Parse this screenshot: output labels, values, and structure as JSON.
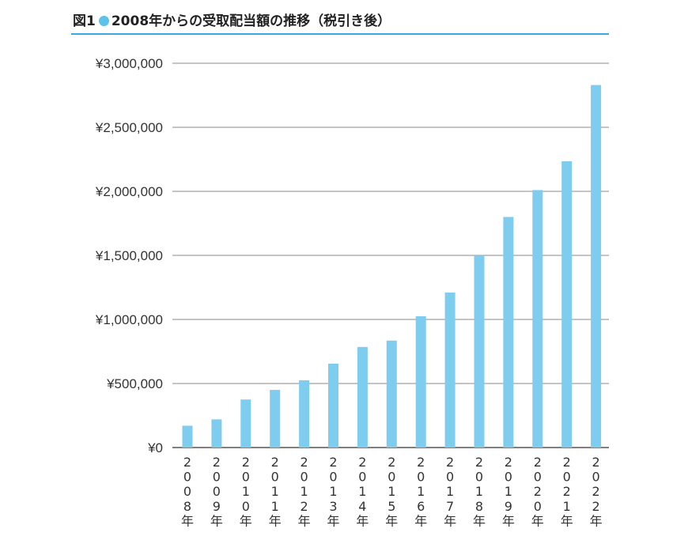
{
  "figure": {
    "label": "図1",
    "title": "2008年からの受取配当額の推移（税引き後）",
    "accent_color": "#5bc3ea",
    "rule_color": "#3aa9df"
  },
  "chart_data": {
    "type": "bar",
    "title": "2008年からの受取配当額の推移（税引き後）",
    "xlabel": "",
    "ylabel": "",
    "categories": [
      "2008年",
      "2009年",
      "2010年",
      "2011年",
      "2012年",
      "2013年",
      "2014年",
      "2015年",
      "2016年",
      "2017年",
      "2018年",
      "2019年",
      "2020年",
      "2021年",
      "2022年"
    ],
    "values": [
      170000,
      220000,
      375000,
      450000,
      525000,
      655000,
      785000,
      835000,
      1025000,
      1210000,
      1500000,
      1800000,
      2010000,
      2235000,
      2830000
    ],
    "ylim": [
      0,
      3000000
    ],
    "yticks": [
      0,
      500000,
      1000000,
      1500000,
      2000000,
      2500000,
      3000000
    ],
    "ytick_labels": [
      "¥0",
      "¥500,000",
      "¥1,000,000",
      "¥1,500,000",
      "¥2,000,000",
      "¥2,500,000",
      "¥3,000,000"
    ],
    "bar_color": "#7fcdee",
    "grid": true,
    "grid_color": "#888888"
  }
}
